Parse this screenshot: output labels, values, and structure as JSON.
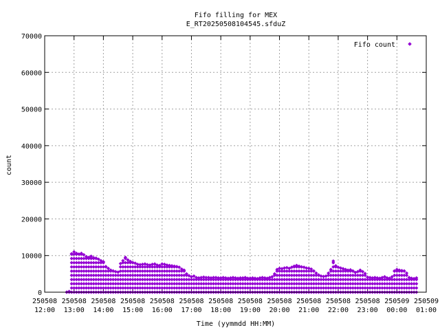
{
  "chart_data": {
    "type": "scatter",
    "title": "Fifo filling for MEX",
    "subtitle": "E_RT20250508104545.sfduZ",
    "xlabel": "Time (yymmdd HH:MM)",
    "ylabel": "count",
    "legend": {
      "label": "Fifo count",
      "placement": "top-right"
    },
    "grid": true,
    "ylim": [
      0,
      70000
    ],
    "y_ticks": [
      "0",
      "10000",
      "20000",
      "30000",
      "40000",
      "50000",
      "60000",
      "70000"
    ],
    "xlim": [
      "250508 12:00",
      "250509 01:00"
    ],
    "x_ticks": [
      {
        "date": "250508",
        "time": "12:00"
      },
      {
        "date": "250508",
        "time": "13:00"
      },
      {
        "date": "250508",
        "time": "14:00"
      },
      {
        "date": "250508",
        "time": "15:00"
      },
      {
        "date": "250508",
        "time": "16:00"
      },
      {
        "date": "250508",
        "time": "17:00"
      },
      {
        "date": "250508",
        "time": "18:00"
      },
      {
        "date": "250508",
        "time": "19:00"
      },
      {
        "date": "250508",
        "time": "20:00"
      },
      {
        "date": "250508",
        "time": "21:00"
      },
      {
        "date": "250508",
        "time": "22:00"
      },
      {
        "date": "250508",
        "time": "23:00"
      },
      {
        "date": "250509",
        "time": "00:00"
      },
      {
        "date": "250509",
        "time": "01:00"
      }
    ],
    "series": [
      {
        "name": "Fifo count",
        "color": "#9400d3",
        "marker": "diamond",
        "x_time": [
          "12:45",
          "12:50",
          "12:55",
          "13:00",
          "13:05",
          "13:10",
          "13:15",
          "13:20",
          "13:25",
          "13:30",
          "13:35",
          "13:40",
          "13:45",
          "13:50",
          "13:55",
          "14:00",
          "14:05",
          "14:10",
          "14:15",
          "14:20",
          "14:25",
          "14:30",
          "14:35",
          "14:40",
          "14:45",
          "14:50",
          "14:55",
          "15:00",
          "15:05",
          "15:10",
          "15:15",
          "15:20",
          "15:25",
          "15:30",
          "15:35",
          "15:40",
          "15:45",
          "15:50",
          "15:55",
          "16:00",
          "16:05",
          "16:10",
          "16:15",
          "16:20",
          "16:25",
          "16:30",
          "16:35",
          "16:40",
          "16:45",
          "16:50",
          "16:55",
          "17:00",
          "17:05",
          "17:10",
          "17:15",
          "17:20",
          "17:25",
          "17:30",
          "17:35",
          "17:40",
          "17:45",
          "17:50",
          "17:55",
          "18:00",
          "18:05",
          "18:10",
          "18:15",
          "18:20",
          "18:25",
          "18:30",
          "18:35",
          "18:40",
          "18:45",
          "18:50",
          "18:55",
          "19:00",
          "19:05",
          "19:10",
          "19:15",
          "19:20",
          "19:25",
          "19:30",
          "19:35",
          "19:40",
          "19:45",
          "19:50",
          "19:55",
          "20:00",
          "20:05",
          "20:10",
          "20:15",
          "20:20",
          "20:25",
          "20:30",
          "20:35",
          "20:40",
          "20:45",
          "20:50",
          "20:55",
          "21:00",
          "21:05",
          "21:10",
          "21:15",
          "21:20",
          "21:25",
          "21:30",
          "21:35",
          "21:40",
          "21:45",
          "21:50",
          "21:55",
          "22:00",
          "22:05",
          "22:10",
          "22:15",
          "22:20",
          "22:25",
          "22:30",
          "22:35",
          "22:40",
          "22:45",
          "22:50",
          "22:55",
          "23:00",
          "23:05",
          "23:10",
          "23:15",
          "23:20",
          "23:25",
          "23:30",
          "23:35",
          "23:40",
          "23:45",
          "23:50",
          "23:55",
          "00:00",
          "00:05",
          "00:10",
          "00:15",
          "00:20",
          "00:25",
          "00:30",
          "00:35",
          "00:40"
        ],
        "y_max": [
          0,
          200,
          10500,
          11000,
          10600,
          10400,
          10600,
          10200,
          9700,
          9500,
          9800,
          9400,
          9300,
          9000,
          8600,
          8300,
          7000,
          6500,
          6000,
          5800,
          5600,
          5500,
          7800,
          8600,
          9500,
          8800,
          8400,
          8100,
          7900,
          7600,
          7500,
          7600,
          7700,
          7500,
          7400,
          7600,
          7700,
          7400,
          7300,
          7700,
          7600,
          7400,
          7300,
          7200,
          7100,
          7000,
          6800,
          6300,
          6000,
          5000,
          4500,
          4200,
          4400,
          4000,
          3900,
          4000,
          4100,
          4000,
          4000,
          3900,
          4000,
          4000,
          3900,
          3900,
          4000,
          3900,
          3800,
          3900,
          4000,
          3900,
          3800,
          3900,
          3900,
          4000,
          3800,
          3800,
          3900,
          3800,
          3700,
          3900,
          4000,
          3900,
          3800,
          4000,
          4200,
          5000,
          6200,
          6500,
          6400,
          6600,
          6700,
          6500,
          6800,
          7100,
          7300,
          7100,
          6900,
          6800,
          6600,
          6500,
          6300,
          5800,
          5200,
          4700,
          4400,
          4300,
          4400,
          5200,
          6200,
          8500,
          7200,
          6800,
          6600,
          6400,
          6200,
          6000,
          6100,
          5800,
          5400,
          5600,
          6000,
          5600,
          5100,
          4100,
          4000,
          3900,
          4000,
          3900,
          3800,
          4000,
          4200,
          3900,
          3800,
          4200,
          5800,
          6200,
          6000,
          5900,
          5800,
          5200,
          4000,
          3800,
          3700,
          3900
        ]
      }
    ]
  }
}
